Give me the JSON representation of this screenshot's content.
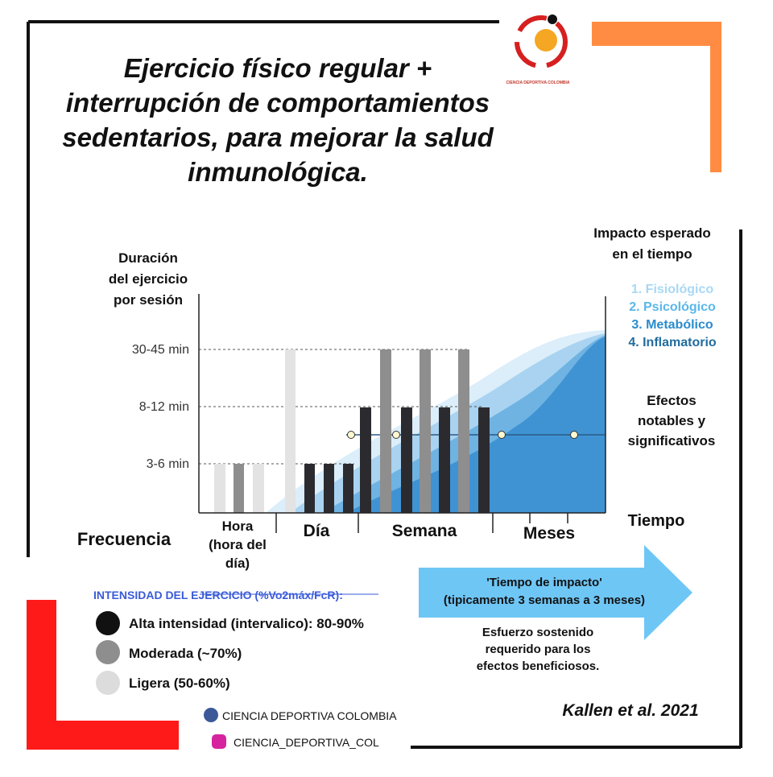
{
  "title": [
    "Ejercicio físico regular +",
    "interrupción de  comportamientos",
    "sedentarios, para mejorar la salud",
    "inmunológica."
  ],
  "logo_text": "CIENCIA DEPORTIVA COLOMBIA",
  "y_axis_label": [
    "Duración",
    "del ejercicio",
    "por sesión"
  ],
  "y_levels": [
    "30-45 min",
    "8-12 min",
    "3-6 min"
  ],
  "x_axis_label": "Frecuencia",
  "periods": [
    [
      "Hora",
      "(hora del",
      "día)"
    ],
    [
      "Día"
    ],
    [
      "Semana"
    ],
    [
      "Meses"
    ]
  ],
  "time_label": "Tiempo",
  "impact_title": [
    "Impacto esperado",
    "en el tiempo"
  ],
  "impacts": [
    "1. Fisiológico",
    "2. Psicológico",
    "3. Metabólico",
    "4. Inflamatorio"
  ],
  "effects": [
    "Efectos",
    "notables y",
    "significativos"
  ],
  "legend": {
    "title": "INTENSIDAD DEL EJERCICIO (%Vo2máx/FcR):",
    "items": [
      "Alta intensidad (intervalico): 80-90%",
      "Moderada (~70%)",
      "Ligera (50-60%)"
    ]
  },
  "arrow": [
    "'Tiempo de impacto'",
    "(tipicamente 3 semanas a 3 meses)"
  ],
  "note": [
    "Esfuerzo sostenido",
    "requerido para los",
    "efectos beneficiosos."
  ],
  "citation": "Kallen et al. 2021",
  "social": [
    "CIENCIA DEPORTIVA COLOMBIA",
    "CIENCIA_DEPORTIVA_COL"
  ]
}
